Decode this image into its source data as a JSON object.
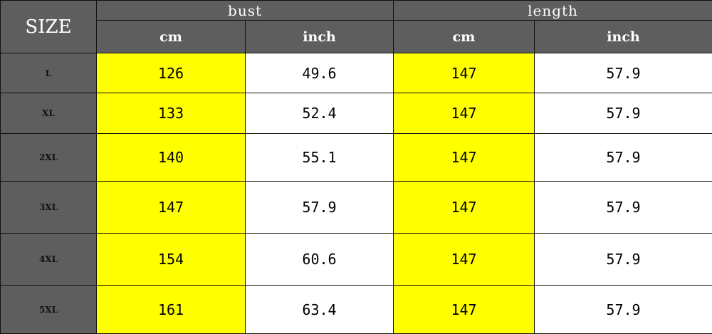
{
  "table": {
    "size_header": "SIZE",
    "groups": [
      "bust",
      "length"
    ],
    "units": [
      "cm",
      "inch",
      "cm",
      "inch"
    ],
    "rows": [
      {
        "size": "L",
        "bust_cm": "126",
        "bust_inch": "49.6",
        "length_cm": "147",
        "length_inch": "57.9"
      },
      {
        "size": "XL",
        "bust_cm": "133",
        "bust_inch": "52.4",
        "length_cm": "147",
        "length_inch": "57.9"
      },
      {
        "size": "2XL",
        "bust_cm": "140",
        "bust_inch": "55.1",
        "length_cm": "147",
        "length_inch": "57.9"
      },
      {
        "size": "3XL",
        "bust_cm": "147",
        "bust_inch": "57.9",
        "length_cm": "147",
        "length_inch": "57.9"
      },
      {
        "size": "4XL",
        "bust_cm": "154",
        "bust_inch": "60.6",
        "length_cm": "147",
        "length_inch": "57.9"
      },
      {
        "size": "5XL",
        "bust_cm": "161",
        "bust_inch": "63.4",
        "length_cm": "147",
        "length_inch": "57.9"
      }
    ]
  },
  "colors": {
    "header": "#5e5e5e",
    "highlight": "#ffff00"
  }
}
